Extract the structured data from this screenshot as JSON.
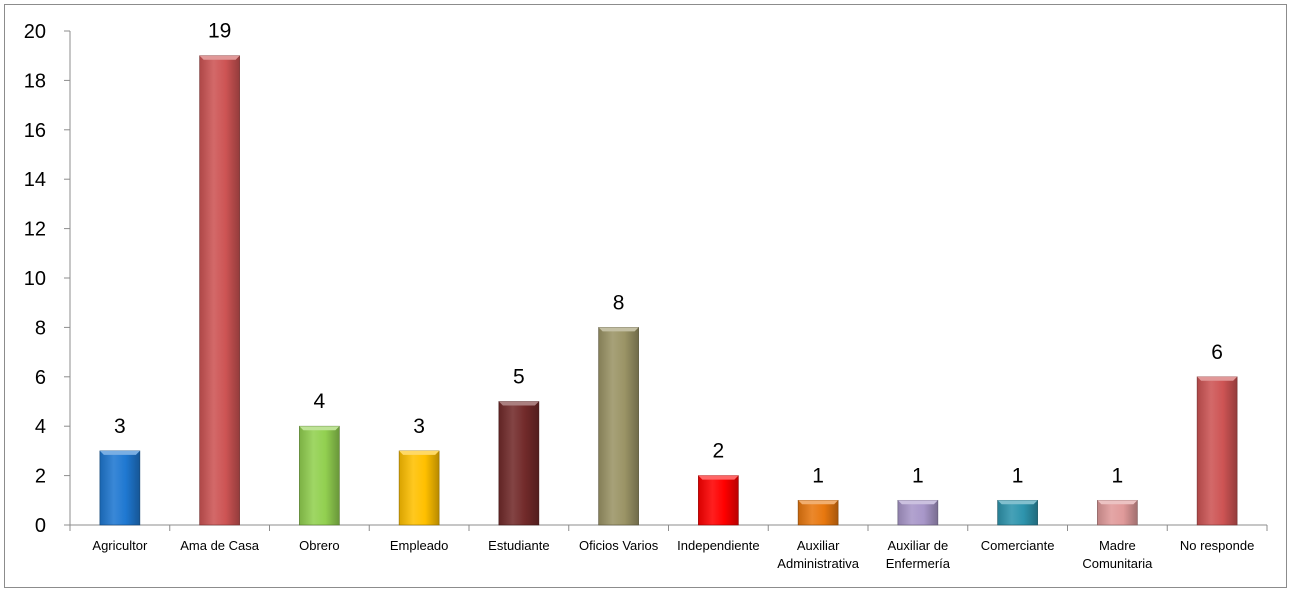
{
  "chart_data": {
    "type": "bar",
    "title": "",
    "xlabel": "",
    "ylabel": "",
    "ylim": [
      0,
      20
    ],
    "yticks": [
      0,
      2,
      4,
      6,
      8,
      10,
      12,
      14,
      16,
      18,
      20
    ],
    "grid": false,
    "legend": "none",
    "categories": [
      [
        "Agricultor"
      ],
      [
        "Ama  de Casa"
      ],
      [
        "Obrero"
      ],
      [
        "Empleado"
      ],
      [
        "Estudiante"
      ],
      [
        "Oficios Varios"
      ],
      [
        "Independiente"
      ],
      [
        "Auxiliar",
        "Administrativa"
      ],
      [
        "Auxiliar de",
        "Enfermería"
      ],
      [
        "Comerciante"
      ],
      [
        "Madre",
        "Comunitaria"
      ],
      [
        "No responde"
      ]
    ],
    "values": [
      3,
      19,
      4,
      3,
      5,
      8,
      2,
      1,
      1,
      1,
      1,
      6
    ],
    "colors": [
      "#1f78d1",
      "#cd5454",
      "#92d050",
      "#ffc000",
      "#722a2a",
      "#9b9466",
      "#ff0000",
      "#e8780f",
      "#a897c9",
      "#2e94ad",
      "#e09a9a",
      "#cd5454"
    ]
  }
}
